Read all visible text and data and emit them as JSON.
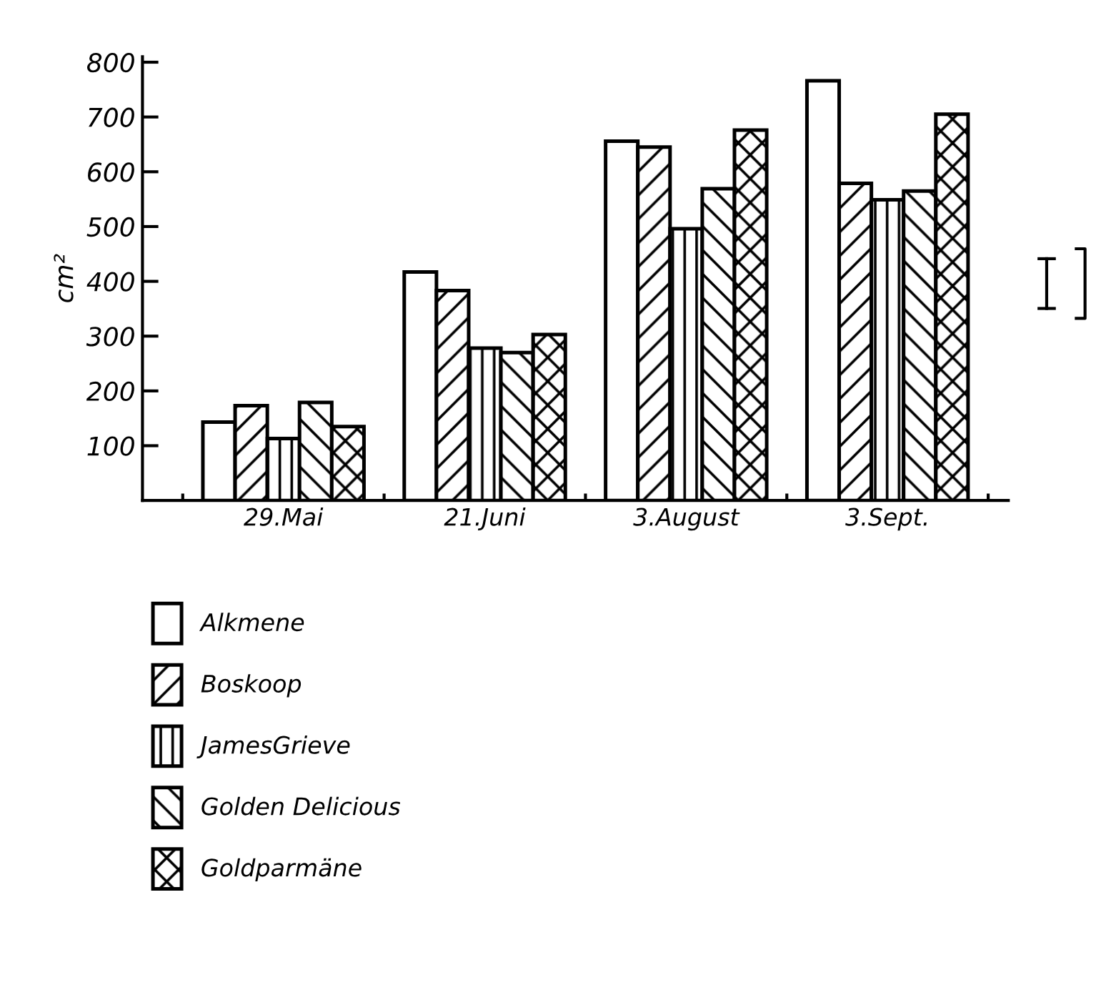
{
  "chart_data": {
    "type": "bar",
    "ylabel": "cm²",
    "categories": [
      "29.Mai",
      "21.Juni",
      "3.August",
      "3.Sept."
    ],
    "series": [
      {
        "name": "Alkmene",
        "color": "#ffffff",
        "values": [
          143,
          417,
          656,
          766
        ]
      },
      {
        "name": "Boskoop",
        "color": "#000000",
        "values": [
          173,
          383,
          645,
          579
        ]
      },
      {
        "name": "JamesGrieve",
        "color": "#000000",
        "values": [
          113,
          278,
          496,
          549
        ]
      },
      {
        "name": "Golden Delicious",
        "color": "#000000",
        "values": [
          179,
          270,
          569,
          565
        ]
      },
      {
        "name": "Goldparmäne",
        "color": "#000000",
        "values": [
          135,
          303,
          676,
          705
        ]
      }
    ],
    "ylim": [
      0,
      810
    ],
    "yticks": [
      100,
      200,
      300,
      400,
      500,
      600,
      700,
      800
    ],
    "grid": false,
    "legend": "bottom left"
  }
}
